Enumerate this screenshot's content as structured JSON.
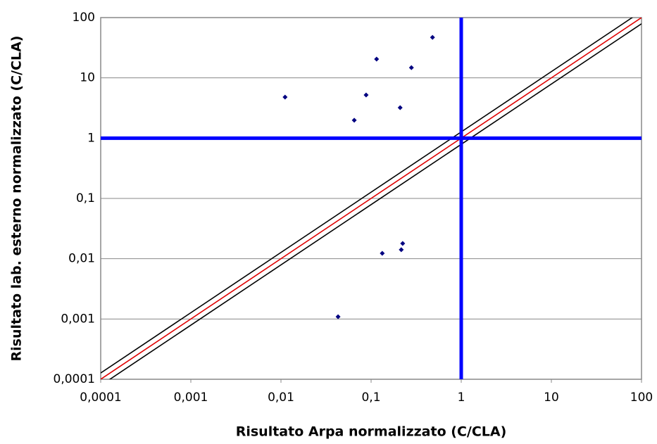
{
  "chart_data": {
    "type": "scatter",
    "x_label": "Risultato Arpa normalizzato (C/CLA)",
    "y_label": "Risultato lab. esterno normalizzato (C/CLA)",
    "log_x": true,
    "log_y": true,
    "grid": true,
    "xlim": [
      0.0001,
      100
    ],
    "ylim": [
      0.0001,
      100
    ],
    "xticks": [
      {
        "value": 0.0001,
        "label": "0,0001"
      },
      {
        "value": 0.001,
        "label": "0,001"
      },
      {
        "value": 0.01,
        "label": "0,01"
      },
      {
        "value": 0.1,
        "label": "0,1"
      },
      1,
      10,
      100
    ],
    "yticks": [
      {
        "value": 0.0001,
        "label": "0,0001"
      },
      {
        "value": 0.001,
        "label": "0,001"
      },
      {
        "value": 0.01,
        "label": "0,01"
      },
      {
        "value": 0.1,
        "label": "0,1"
      },
      1,
      10,
      100
    ],
    "series": [
      {
        "color": "#000080",
        "x": [
          0.0111,
          0.115,
          0.28,
          0.48,
          0.088,
          0.21,
          0.065,
          0.133,
          0.216,
          0.224,
          0.043
        ],
        "values": [
          4.8,
          20.5,
          14.8,
          47,
          5.2,
          3.2,
          1.98,
          0.0123,
          0.0141,
          0.0179,
          0.00109
        ]
      }
    ],
    "reference_lines": [
      {
        "factor": 1,
        "color": "#e00000"
      },
      {
        "factor": 1.27,
        "color": "#000000"
      },
      {
        "factor": 0.79,
        "color": "#000000"
      }
    ],
    "vline": {
      "value": 1,
      "color": "#0000ff"
    },
    "hline": {
      "value": 1,
      "color": "#0000ff"
    }
  }
}
